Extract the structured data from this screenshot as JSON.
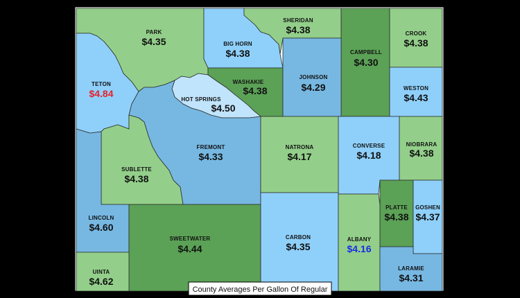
{
  "caption": "County Averages Per Gallon Of Regular",
  "colors": {
    "light_blue": "#8fd0fb",
    "mid_blue": "#77b8e2",
    "light_green": "#93cf8a",
    "dark_green": "#5ba156",
    "red": "#e8202a",
    "blue": "#1a2ce6",
    "black": "#111111"
  },
  "counties": {
    "park": {
      "name": "PARK",
      "price": "$4.35"
    },
    "big_horn": {
      "name": "BIG HORN",
      "price": "$4.38"
    },
    "sheridan": {
      "name": "SHERIDAN",
      "price": "$4.38"
    },
    "campbell": {
      "name": "CAMPBELL",
      "price": "$4.30"
    },
    "crook": {
      "name": "CROOK",
      "price": "$4.38"
    },
    "teton": {
      "name": "TETON",
      "price": "$4.84"
    },
    "washakie": {
      "name": "WASHAKIE",
      "price": "$4.38"
    },
    "johnson": {
      "name": "JOHNSON",
      "price": "$4.29"
    },
    "weston": {
      "name": "WESTON",
      "price": "$4.43"
    },
    "hot_springs": {
      "name": "HOT SPRINGS",
      "price": "$4.50"
    },
    "fremont": {
      "name": "FREMONT",
      "price": "$4.33"
    },
    "natrona": {
      "name": "NATRONA",
      "price": "$4.17"
    },
    "converse": {
      "name": "CONVERSE",
      "price": "$4.18"
    },
    "niobrara": {
      "name": "NIOBRARA",
      "price": "$4.38"
    },
    "sublette": {
      "name": "SUBLETTE",
      "price": "$4.38"
    },
    "lincoln": {
      "name": "LINCOLN",
      "price": "$4.60"
    },
    "sweetwater": {
      "name": "SWEETWATER",
      "price": "$4.44"
    },
    "carbon": {
      "name": "CARBON",
      "price": "$4.35"
    },
    "albany": {
      "name": "ALBANY",
      "price": "$4.16"
    },
    "platte": {
      "name": "PLATTE",
      "price": "$4.38"
    },
    "goshen": {
      "name": "GOSHEN",
      "price": "$4.37"
    },
    "uinta": {
      "name": "UINTA",
      "price": "$4.62"
    },
    "laramie": {
      "name": "LARAMIE",
      "price": "$4.31"
    }
  }
}
